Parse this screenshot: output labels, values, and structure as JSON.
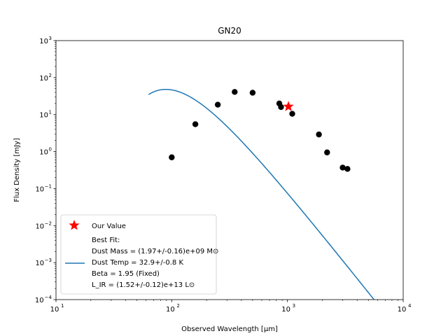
{
  "chart_data": {
    "type": "scatter",
    "title": "GN20",
    "xlabel": "Observed Wavelength [μm]",
    "ylabel": "Flux Density [mJy]",
    "xscale": "log",
    "yscale": "log",
    "xlim": [
      10,
      10000
    ],
    "ylim": [
      0.0001,
      1000
    ],
    "x_ticks": [
      {
        "value": 10,
        "base": "10",
        "exp": "1"
      },
      {
        "value": 100,
        "base": "10",
        "exp": "2"
      },
      {
        "value": 1000,
        "base": "10",
        "exp": "3"
      },
      {
        "value": 10000,
        "base": "10",
        "exp": "4"
      }
    ],
    "y_ticks": [
      {
        "value": 0.0001,
        "base": "10",
        "exp": "−4"
      },
      {
        "value": 0.001,
        "base": "10",
        "exp": "−3"
      },
      {
        "value": 0.01,
        "base": "10",
        "exp": "−2"
      },
      {
        "value": 0.1,
        "base": "10",
        "exp": "−1"
      },
      {
        "value": 1,
        "base": "10",
        "exp": "0"
      },
      {
        "value": 10,
        "base": "10",
        "exp": "1"
      },
      {
        "value": 100,
        "base": "10",
        "exp": "2"
      },
      {
        "value": 1000,
        "base": "10",
        "exp": "3"
      }
    ],
    "grid": false,
    "legend_position": "lower-left",
    "colors": {
      "points": "#000000",
      "fit": "#1f77b4",
      "star": "#ff0000"
    },
    "observed_points": {
      "x": [
        100,
        160,
        250,
        350,
        500,
        850,
        880,
        1100,
        1870,
        2200,
        3000,
        3300
      ],
      "y": [
        0.7,
        5.5,
        18.5,
        41,
        39,
        20,
        16,
        10.5,
        2.9,
        0.95,
        0.37,
        0.34
      ]
    },
    "our_value": {
      "label": "Our Value",
      "x": 1020,
      "y": 16.5
    },
    "best_fit": {
      "label_lines": [
        "Best Fit:",
        "Dust Mass = (1.97+/-0.16)e+09 M⊙",
        "Dust Temp = 32.9+/-0.8 K",
        "Beta = 1.95 (Fixed)",
        "L_IR = (1.52+/-0.12)e+13 L⊙"
      ],
      "T_dust_K": 32.9,
      "beta": 1.95,
      "peak_flux_mJy": 48
    }
  }
}
